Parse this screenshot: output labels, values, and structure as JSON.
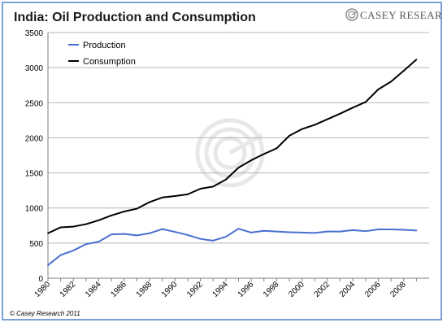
{
  "header": {
    "title": "India: Oil Production and Consumption",
    "brand": "CASEY RESEARCH.COM"
  },
  "footer": {
    "copyright": "© Casey Research 2011"
  },
  "colors": {
    "production": "#4a6fd0",
    "consumption": "#000000",
    "frame": "#7d9fd6"
  },
  "icons": {
    "brand_logo": "casey-research-logo-icon",
    "watermark": "casey-research-watermark-icon"
  },
  "chart_data": {
    "type": "line",
    "title": "India: Oil Production and Consumption",
    "xlabel": "",
    "ylabel": "",
    "ylim": [
      0,
      3500
    ],
    "yticks": [
      0,
      500,
      1000,
      1500,
      2000,
      2500,
      3000,
      3500
    ],
    "xticks": [
      "1980",
      "1982",
      "1984",
      "1986",
      "1988",
      "1990",
      "1992",
      "1994",
      "1996",
      "1998",
      "2000",
      "2002",
      "2004",
      "2006",
      "2008"
    ],
    "grid": true,
    "legend_position": "top-left",
    "x": [
      1980,
      1981,
      1982,
      1983,
      1984,
      1985,
      1986,
      1987,
      1988,
      1989,
      1990,
      1991,
      1992,
      1993,
      1994,
      1995,
      1996,
      1997,
      1998,
      1999,
      2000,
      2001,
      2002,
      2003,
      2004,
      2005,
      2006,
      2007,
      2008,
      2009
    ],
    "series": [
      {
        "name": "Production",
        "color": "#4a6fd0",
        "values": [
          185,
          330,
          395,
          485,
          520,
          625,
          630,
          610,
          640,
          700,
          660,
          615,
          560,
          535,
          590,
          705,
          650,
          675,
          665,
          655,
          650,
          645,
          665,
          665,
          685,
          670,
          695,
          695,
          690,
          680
        ]
      },
      {
        "name": "Consumption",
        "color": "#000000",
        "values": [
          640,
          725,
          735,
          770,
          825,
          895,
          950,
          990,
          1085,
          1150,
          1170,
          1195,
          1275,
          1305,
          1405,
          1575,
          1680,
          1770,
          1850,
          2030,
          2125,
          2185,
          2265,
          2345,
          2430,
          2510,
          2690,
          2800,
          2955,
          3115
        ]
      }
    ]
  }
}
